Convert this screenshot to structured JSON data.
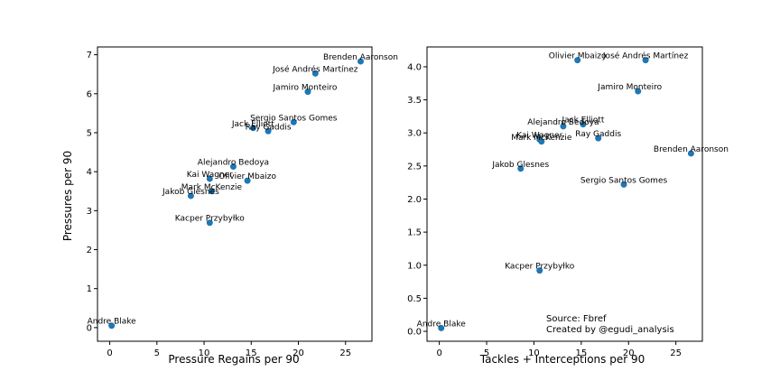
{
  "colors": {
    "marker": "#1f77b4",
    "frame": "#000000",
    "background": "#ffffff"
  },
  "ylabel": "Pressures per 90",
  "note": {
    "line1": "Source: Fbref",
    "line2": "Created by @egudi_analysis"
  },
  "chart_data": [
    {
      "type": "scatter",
      "xlabel": "Pressure Regains per 90",
      "ylabel": "Pressures per 90",
      "xlim": [
        -1.3,
        27.8
      ],
      "ylim": [
        -0.35,
        7.2
      ],
      "xticks": [
        0,
        5,
        10,
        15,
        20,
        25
      ],
      "yticks": [
        0,
        1,
        2,
        3,
        4,
        5,
        6,
        7
      ],
      "grid": false,
      "points": [
        {
          "label": "Brenden Aaronson",
          "x": 26.6,
          "y": 6.83
        },
        {
          "label": "José Andrés Martínez",
          "x": 21.8,
          "y": 6.52
        },
        {
          "label": "Jamiro Monteiro",
          "x": 21.0,
          "y": 6.05
        },
        {
          "label": "Sergio Santos Gomes",
          "x": 19.5,
          "y": 5.27
        },
        {
          "label": "Jack Elliott",
          "x": 15.2,
          "y": 5.12
        },
        {
          "label": "Ray Gaddis",
          "x": 16.8,
          "y": 5.04
        },
        {
          "label": "Alejandro Bedoya",
          "x": 13.1,
          "y": 4.13
        },
        {
          "label": "Kai Wagner",
          "x": 10.6,
          "y": 3.82
        },
        {
          "label": "Olivier Mbaizo",
          "x": 14.6,
          "y": 3.77
        },
        {
          "label": "Mark McKenzie",
          "x": 10.8,
          "y": 3.5
        },
        {
          "label": "Jakob Glesnes",
          "x": 8.6,
          "y": 3.38
        },
        {
          "label": "Kacper Przybyłko",
          "x": 10.6,
          "y": 2.69
        },
        {
          "label": "Andre Blake",
          "x": 0.2,
          "y": 0.05
        }
      ]
    },
    {
      "type": "scatter",
      "xlabel": "Tackles + Interceptions per 90",
      "ylabel": "",
      "xlim": [
        -1.3,
        27.8
      ],
      "ylim": [
        -0.15,
        4.3
      ],
      "xticks": [
        0,
        5,
        10,
        15,
        20,
        25
      ],
      "yticks": [
        0.0,
        0.5,
        1.0,
        1.5,
        2.0,
        2.5,
        3.0,
        3.5,
        4.0
      ],
      "grid": false,
      "points": [
        {
          "label": "Olivier Mbaizo",
          "x": 14.6,
          "y": 4.1
        },
        {
          "label": "José Andrés Martínez",
          "x": 21.8,
          "y": 4.1
        },
        {
          "label": "Jamiro Monteiro",
          "x": 21.0,
          "y": 3.63
        },
        {
          "label": "Jack Elliott",
          "x": 15.2,
          "y": 3.13
        },
        {
          "label": "Alejandro Bedoya",
          "x": 13.1,
          "y": 3.1
        },
        {
          "label": "Ray Gaddis",
          "x": 16.8,
          "y": 2.92
        },
        {
          "label": "Kai Wagner",
          "x": 10.6,
          "y": 2.9
        },
        {
          "label": "Mark McKenzie",
          "x": 10.8,
          "y": 2.87
        },
        {
          "label": "Brenden Aaronson",
          "x": 26.6,
          "y": 2.69
        },
        {
          "label": "Jakob Glesnes",
          "x": 8.6,
          "y": 2.46
        },
        {
          "label": "Sergio Santos Gomes",
          "x": 19.5,
          "y": 2.22
        },
        {
          "label": "Kacper Przybyłko",
          "x": 10.6,
          "y": 0.92
        },
        {
          "label": "Andre Blake",
          "x": 0.2,
          "y": 0.05
        }
      ]
    }
  ]
}
